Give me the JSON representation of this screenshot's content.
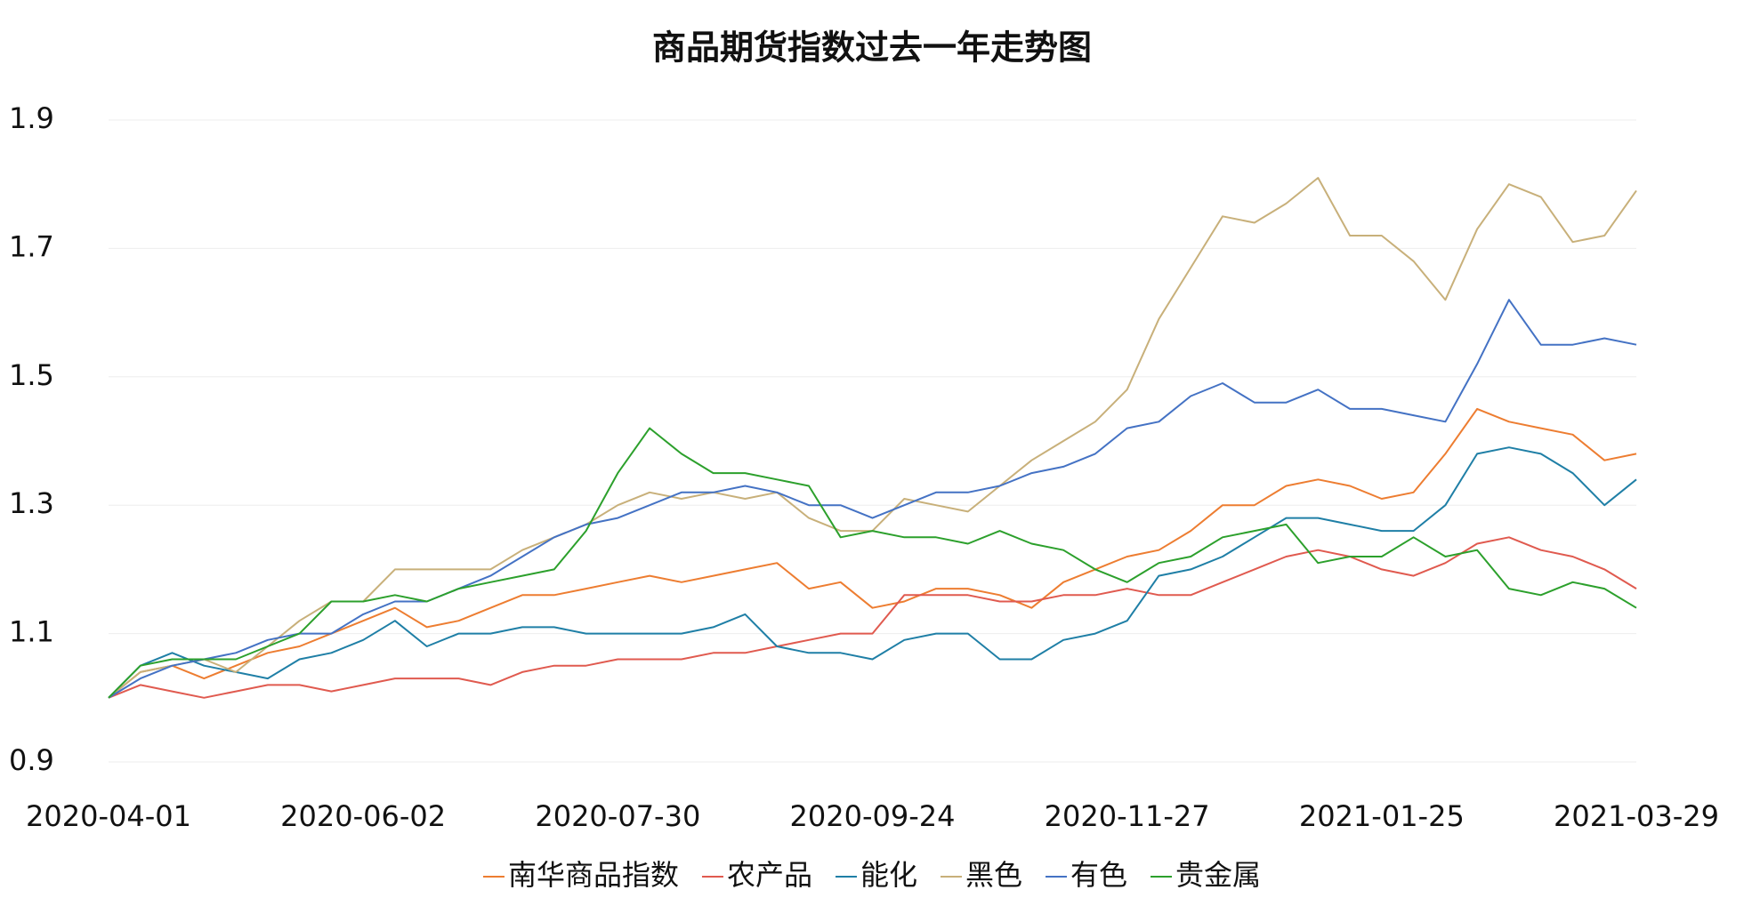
{
  "chart_data": {
    "type": "line",
    "title": "商品期货指数过去一年走势图",
    "categories": [
      "2020-04-01",
      null,
      null,
      null,
      null,
      null,
      null,
      null,
      "2020-06-02",
      null,
      null,
      null,
      null,
      null,
      null,
      null,
      "2020-07-30",
      null,
      null,
      null,
      null,
      null,
      null,
      null,
      "2020-09-24",
      null,
      null,
      null,
      null,
      null,
      null,
      null,
      "2020-11-27",
      null,
      null,
      null,
      null,
      null,
      null,
      null,
      "2021-01-25",
      null,
      null,
      null,
      null,
      null,
      null,
      null,
      "2021-03-29"
    ],
    "series": [
      {
        "name": "南华商品指数",
        "color": "#ed7d31",
        "values": [
          1.0,
          1.04,
          1.05,
          1.03,
          1.05,
          1.07,
          1.08,
          1.1,
          1.12,
          1.14,
          1.11,
          1.12,
          1.14,
          1.16,
          1.16,
          1.17,
          1.18,
          1.19,
          1.18,
          1.19,
          1.2,
          1.21,
          1.17,
          1.18,
          1.14,
          1.15,
          1.17,
          1.17,
          1.16,
          1.14,
          1.18,
          1.2,
          1.22,
          1.23,
          1.26,
          1.3,
          1.3,
          1.33,
          1.34,
          1.33,
          1.31,
          1.32,
          1.38,
          1.45,
          1.43,
          1.42,
          1.41,
          1.37,
          1.38
        ]
      },
      {
        "name": "农产品",
        "color": "#e05a4f",
        "values": [
          1.0,
          1.02,
          1.01,
          1.0,
          1.01,
          1.02,
          1.02,
          1.01,
          1.02,
          1.03,
          1.03,
          1.03,
          1.02,
          1.04,
          1.05,
          1.05,
          1.06,
          1.06,
          1.06,
          1.07,
          1.07,
          1.08,
          1.09,
          1.1,
          1.1,
          1.16,
          1.16,
          1.16,
          1.15,
          1.15,
          1.16,
          1.16,
          1.17,
          1.16,
          1.16,
          1.18,
          1.2,
          1.22,
          1.23,
          1.22,
          1.2,
          1.19,
          1.21,
          1.24,
          1.25,
          1.23,
          1.22,
          1.2,
          1.17
        ]
      },
      {
        "name": "能化",
        "color": "#1f7fa6",
        "values": [
          1.0,
          1.05,
          1.07,
          1.05,
          1.04,
          1.03,
          1.06,
          1.07,
          1.09,
          1.12,
          1.08,
          1.1,
          1.1,
          1.11,
          1.11,
          1.1,
          1.1,
          1.1,
          1.1,
          1.11,
          1.13,
          1.08,
          1.07,
          1.07,
          1.06,
          1.09,
          1.1,
          1.1,
          1.06,
          1.06,
          1.09,
          1.1,
          1.12,
          1.19,
          1.2,
          1.22,
          1.25,
          1.28,
          1.28,
          1.27,
          1.26,
          1.26,
          1.3,
          1.38,
          1.39,
          1.38,
          1.35,
          1.3,
          1.34
        ]
      },
      {
        "name": "黑色",
        "color": "#c8b07a",
        "values": [
          1.0,
          1.04,
          1.05,
          1.06,
          1.04,
          1.08,
          1.12,
          1.15,
          1.15,
          1.2,
          1.2,
          1.2,
          1.2,
          1.23,
          1.25,
          1.27,
          1.3,
          1.32,
          1.31,
          1.32,
          1.31,
          1.32,
          1.28,
          1.26,
          1.26,
          1.31,
          1.3,
          1.29,
          1.33,
          1.37,
          1.4,
          1.43,
          1.48,
          1.59,
          1.67,
          1.75,
          1.74,
          1.77,
          1.81,
          1.72,
          1.72,
          1.68,
          1.62,
          1.73,
          1.8,
          1.78,
          1.71,
          1.72,
          1.79
        ]
      },
      {
        "name": "有色",
        "color": "#4472c4",
        "values": [
          1.0,
          1.03,
          1.05,
          1.06,
          1.07,
          1.09,
          1.1,
          1.1,
          1.13,
          1.15,
          1.15,
          1.17,
          1.19,
          1.22,
          1.25,
          1.27,
          1.28,
          1.3,
          1.32,
          1.32,
          1.33,
          1.32,
          1.3,
          1.3,
          1.28,
          1.3,
          1.32,
          1.32,
          1.33,
          1.35,
          1.36,
          1.38,
          1.42,
          1.43,
          1.47,
          1.49,
          1.46,
          1.46,
          1.48,
          1.45,
          1.45,
          1.44,
          1.43,
          1.52,
          1.62,
          1.55,
          1.55,
          1.56,
          1.55
        ]
      },
      {
        "name": "贵金属",
        "color": "#2ca02c",
        "values": [
          1.0,
          1.05,
          1.06,
          1.06,
          1.06,
          1.08,
          1.1,
          1.15,
          1.15,
          1.16,
          1.15,
          1.17,
          1.18,
          1.19,
          1.2,
          1.26,
          1.35,
          1.42,
          1.38,
          1.35,
          1.35,
          1.34,
          1.33,
          1.25,
          1.26,
          1.25,
          1.25,
          1.24,
          1.26,
          1.24,
          1.23,
          1.2,
          1.18,
          1.21,
          1.22,
          1.25,
          1.26,
          1.27,
          1.21,
          1.22,
          1.22,
          1.25,
          1.22,
          1.23,
          1.17,
          1.16,
          1.18,
          1.17,
          1.14
        ]
      }
    ],
    "ylim": [
      0.9,
      1.9
    ],
    "yticks": [
      0.9,
      1.1,
      1.3,
      1.5,
      1.7,
      1.9
    ],
    "grid": true,
    "legend": "bottom"
  }
}
